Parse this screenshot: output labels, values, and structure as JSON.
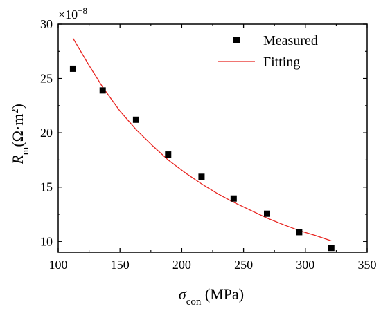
{
  "chart_data": {
    "type": "scatter",
    "xlabel": {
      "symbol": "σ",
      "subscript": "con",
      "unit": " (MPa)"
    },
    "ylabel": {
      "symbol": "R",
      "subscript": "m",
      "unit_open": "(Ω·m",
      "unit_sup": "2",
      "unit_close": ")"
    },
    "y_multiplier": {
      "base": "×10",
      "exponent": "−8"
    },
    "xlim": [
      100,
      350
    ],
    "ylim": [
      9,
      30
    ],
    "xticks": [
      100,
      150,
      200,
      250,
      300,
      350
    ],
    "yticks": [
      10,
      15,
      20,
      25,
      30
    ],
    "grid": false,
    "legend_position": "top-right",
    "series": [
      {
        "name": "Measured",
        "kind": "scatter",
        "marker": "square",
        "color": "#000000",
        "x": [
          112,
          136,
          163,
          189,
          216,
          242,
          269,
          295,
          321
        ],
        "y": [
          25.9,
          23.9,
          21.2,
          18.0,
          15.95,
          13.95,
          12.55,
          10.85,
          9.4
        ]
      },
      {
        "name": "Fitting",
        "kind": "line",
        "color": "#e8231f",
        "x": [
          112,
          125,
          136,
          150,
          163,
          176,
          189,
          203,
          216,
          229,
          242,
          255,
          269,
          282,
          295,
          308,
          321
        ],
        "y": [
          28.7,
          26.2,
          24.2,
          22.0,
          20.3,
          18.85,
          17.5,
          16.3,
          15.3,
          14.4,
          13.6,
          12.9,
          12.15,
          11.55,
          11.0,
          10.55,
          10.05
        ]
      }
    ]
  }
}
